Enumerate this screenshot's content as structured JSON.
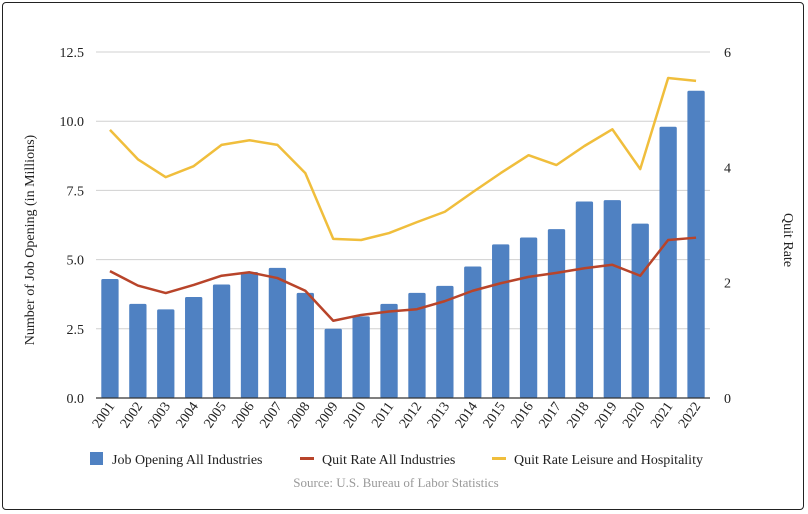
{
  "chart_data": {
    "type": "bar+line",
    "categories": [
      "2001",
      "2002",
      "2003",
      "2004",
      "2005",
      "2006",
      "2007",
      "2008",
      "2009",
      "2010",
      "2011",
      "2012",
      "2013",
      "2014",
      "2015",
      "2016",
      "2017",
      "2018",
      "2019",
      "2020",
      "2021",
      "2022"
    ],
    "ylabel": "Number of Job Opening (in Millions)",
    "y2label": "Quit Rate",
    "ylim": [
      0,
      12.5
    ],
    "y2lim": [
      0,
      6
    ],
    "yticks": [
      "0.0",
      "2.5",
      "5.0",
      "7.5",
      "10.0",
      "12.5"
    ],
    "y2ticks": [
      "0",
      "2",
      "4",
      "6"
    ],
    "grid": true,
    "legend_position": "bottom",
    "source": "Source: U.S. Bureau of Labor Statistics",
    "series": [
      {
        "name": "Job Opening All Industries",
        "type": "bar",
        "axis": "left",
        "color": "#4f81c2",
        "values": [
          4.3,
          3.4,
          3.2,
          3.65,
          4.1,
          4.55,
          4.7,
          3.8,
          2.5,
          2.95,
          3.4,
          3.8,
          4.05,
          4.75,
          5.55,
          5.8,
          6.1,
          7.1,
          7.15,
          6.3,
          9.8,
          11.1
        ]
      },
      {
        "name": "Quit Rate All Industries",
        "type": "line",
        "axis": "right",
        "color": "#b8442a",
        "values": [
          2.2,
          1.95,
          1.82,
          1.96,
          2.12,
          2.18,
          2.08,
          1.86,
          1.34,
          1.44,
          1.5,
          1.54,
          1.68,
          1.86,
          1.99,
          2.1,
          2.17,
          2.25,
          2.31,
          2.12,
          2.74,
          2.78
        ]
      },
      {
        "name": "Quit Rate Leisure and Hospitality",
        "type": "line",
        "axis": "right",
        "color": "#f0be3c",
        "values": [
          4.65,
          4.14,
          3.83,
          4.02,
          4.39,
          4.47,
          4.39,
          3.9,
          2.76,
          2.74,
          2.86,
          3.05,
          3.23,
          3.57,
          3.9,
          4.21,
          4.04,
          4.37,
          4.66,
          3.97,
          5.55,
          5.5
        ]
      }
    ]
  }
}
